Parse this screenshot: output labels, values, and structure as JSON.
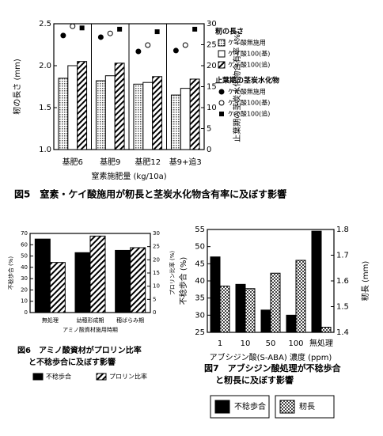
{
  "chart_data": [
    {
      "type": "bar",
      "title": "図5　窒素・ケイ酸施用が籾長と茎炭水化物含有率に及ぼす影響",
      "x_label": "窒素施肥量 (kg/10a)",
      "y_label": "籾の長さ (mm)",
      "y2_label": "止葉期の茎炭水化物含有率 (%)",
      "categories": [
        "基肥6",
        "基肥9",
        "基肥12",
        "基9+追3"
      ],
      "ylim": [
        1.0,
        2.5
      ],
      "yticks": [
        {
          "value": 1.0,
          "label": "1.0"
        },
        1.5,
        {
          "value": 2.0,
          "label": "2.0"
        },
        2.5
      ],
      "y2lim": [
        0,
        30
      ],
      "y2ticks": [
        0,
        5,
        10,
        15,
        20,
        25,
        30
      ],
      "group_separators": true,
      "legend_groups": [
        "籾の長さ",
        "止葉期の茎炭水化物"
      ],
      "series": [
        {
          "name": "ケイ酸無施用",
          "kind": "bar",
          "group": 0,
          "color": "#bbbbbb",
          "pattern": "dots",
          "values": [
            1.85,
            1.82,
            1.78,
            1.65
          ]
        },
        {
          "name": "ケイ酸100(基)",
          "kind": "bar",
          "group": 0,
          "color": "#ffffff",
          "values": [
            2.0,
            1.88,
            1.8,
            1.73
          ]
        },
        {
          "name": "ケイ酸100(追)",
          "kind": "bar",
          "group": 0,
          "color": "#000000",
          "pattern": "hatch",
          "values": [
            2.05,
            2.03,
            1.87,
            1.84
          ]
        },
        {
          "name": "ケイ酸無施用",
          "kind": "point",
          "marker": "circle",
          "group": 1,
          "axis": "y2",
          "color": "#000000",
          "values": [
            27.2,
            26.8,
            23.4,
            23.6
          ]
        },
        {
          "name": "ケイ酸100(基)",
          "kind": "point",
          "marker": "circle-open",
          "group": 1,
          "axis": "y2",
          "color": "#000000",
          "values": [
            29.4,
            27.7,
            24.9,
            24.9
          ]
        },
        {
          "name": "ケイ酸100(追)",
          "kind": "point",
          "marker": "square",
          "group": 1,
          "axis": "y2",
          "color": "#000000",
          "values": [
            29,
            28.7,
            28.1,
            28.7
          ]
        }
      ]
    },
    {
      "type": "bar",
      "title": [
        "図6　アミノ酸資材がプロリン比率",
        "と不稔歩合に及ぼす影響"
      ],
      "x_label": "アミノ酸資材施用時期",
      "y_label": "不稔歩合 (%)",
      "y2_label": "プロリン比率 (%)",
      "categories": [
        "無処理",
        "幼穂形成期",
        "穂ばらみ期"
      ],
      "ylim": [
        0,
        70
      ],
      "yticks": [
        0,
        10,
        20,
        30,
        40,
        50,
        60,
        70
      ],
      "y2lim": [
        0,
        30
      ],
      "y2ticks": [
        0,
        5,
        10,
        15,
        20,
        25,
        30
      ],
      "series": [
        {
          "name": "不稔歩合",
          "kind": "bar",
          "color": "#000000",
          "values": [
            65,
            53,
            55
          ]
        },
        {
          "name": "プロリン比率",
          "kind": "bar",
          "axis": "y2",
          "color": "#000000",
          "pattern": "hatch",
          "values": [
            19,
            29,
            24.6
          ]
        }
      ]
    },
    {
      "type": "bar",
      "title": [
        "図7　アブシジン酸処理が不稔歩合",
        "と籾長に及ぼす影響"
      ],
      "x_label": "アブシジン酸(S-ABA) 濃度 (ppm)",
      "y_label": "不稔歩合 (%)",
      "y2_label": "籾長 (mm)",
      "categories": [
        "1",
        "10",
        "50",
        "100",
        "無処理"
      ],
      "ylim": [
        25,
        55
      ],
      "yticks": [
        25,
        30,
        35,
        40,
        45,
        50,
        55
      ],
      "y2lim": [
        1.4,
        1.8
      ],
      "y2ticks": [
        1.4,
        1.5,
        1.6,
        1.7,
        1.8
      ],
      "series": [
        {
          "name": "不稔歩合",
          "kind": "bar",
          "color": "#000000",
          "values": [
            47,
            39,
            31.5,
            30,
            54.5
          ]
        },
        {
          "name": "籾長",
          "kind": "bar",
          "axis": "y2",
          "color": "#888888",
          "pattern": "checker",
          "values": [
            1.58,
            1.57,
            1.63,
            1.68,
            1.42
          ]
        }
      ]
    }
  ]
}
